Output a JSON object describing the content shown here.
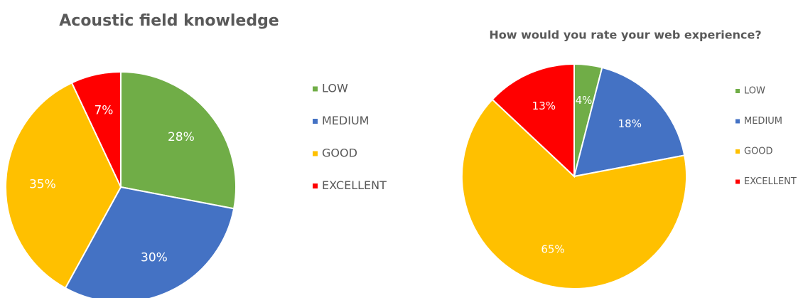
{
  "chart_data": [
    {
      "type": "pie",
      "title": "Acoustic field knowledge",
      "categories": [
        "LOW",
        "MEDIUM",
        "GOOD",
        "EXCELLENT"
      ],
      "values": [
        28,
        30,
        35,
        7
      ],
      "value_labels": [
        "28%",
        "30%",
        "35%",
        "7%"
      ],
      "colors": [
        "#70ad47",
        "#4472c4",
        "#ffc000",
        "#ff0000"
      ]
    },
    {
      "type": "pie",
      "title": "How would you rate your web experience?",
      "categories": [
        "LOW",
        "MEDIUM",
        "GOOD",
        "EXCELLENT"
      ],
      "values": [
        4,
        18,
        65,
        13
      ],
      "value_labels": [
        "4%",
        "18%",
        "65%",
        "13%"
      ],
      "colors": [
        "#70ad47",
        "#4472c4",
        "#ffc000",
        "#ff0000"
      ]
    }
  ]
}
